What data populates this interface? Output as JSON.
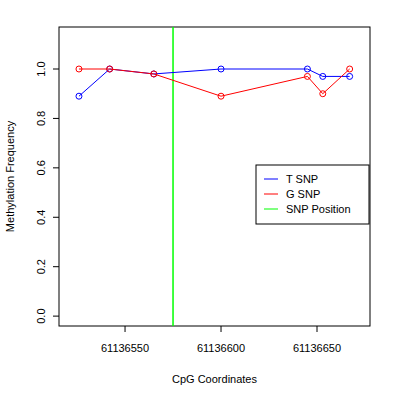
{
  "chart_data": {
    "type": "line",
    "x_label": "CpG Coordinates",
    "y_label": "Methylation Frequency",
    "x": [
      61136526,
      61136542,
      61136565,
      61136600,
      61136645,
      61136653,
      61136667
    ],
    "series": [
      {
        "name": "T SNP",
        "color": "#0000ff",
        "marker": "circle-open",
        "values": [
          0.89,
          1.0,
          0.98,
          1.0,
          1.0,
          0.97,
          0.97
        ]
      },
      {
        "name": "G SNP",
        "color": "#ff0000",
        "marker": "circle-open",
        "values": [
          1.0,
          1.0,
          0.98,
          0.89,
          0.97,
          0.9,
          1.0
        ]
      }
    ],
    "annotations": [
      {
        "text": "SNP Position",
        "x": 61136575,
        "color": "#00ff00"
      }
    ],
    "xlim": [
      61136515.6,
      61136677.6
    ],
    "xticks": [
      61136550,
      61136600,
      61136650
    ],
    "ylim": [
      -0.04,
      1.17
    ],
    "yticks": [
      {
        "value": 0,
        "label": "0.0"
      },
      {
        "value": 0.2,
        "label": "0.2"
      },
      {
        "value": 0.4,
        "label": "0.4"
      },
      {
        "value": 0.6,
        "label": "0.6"
      },
      {
        "value": 0.8,
        "label": "0.8"
      },
      {
        "value": 1,
        "label": "1.0"
      }
    ],
    "legend": "right",
    "grid": false
  }
}
